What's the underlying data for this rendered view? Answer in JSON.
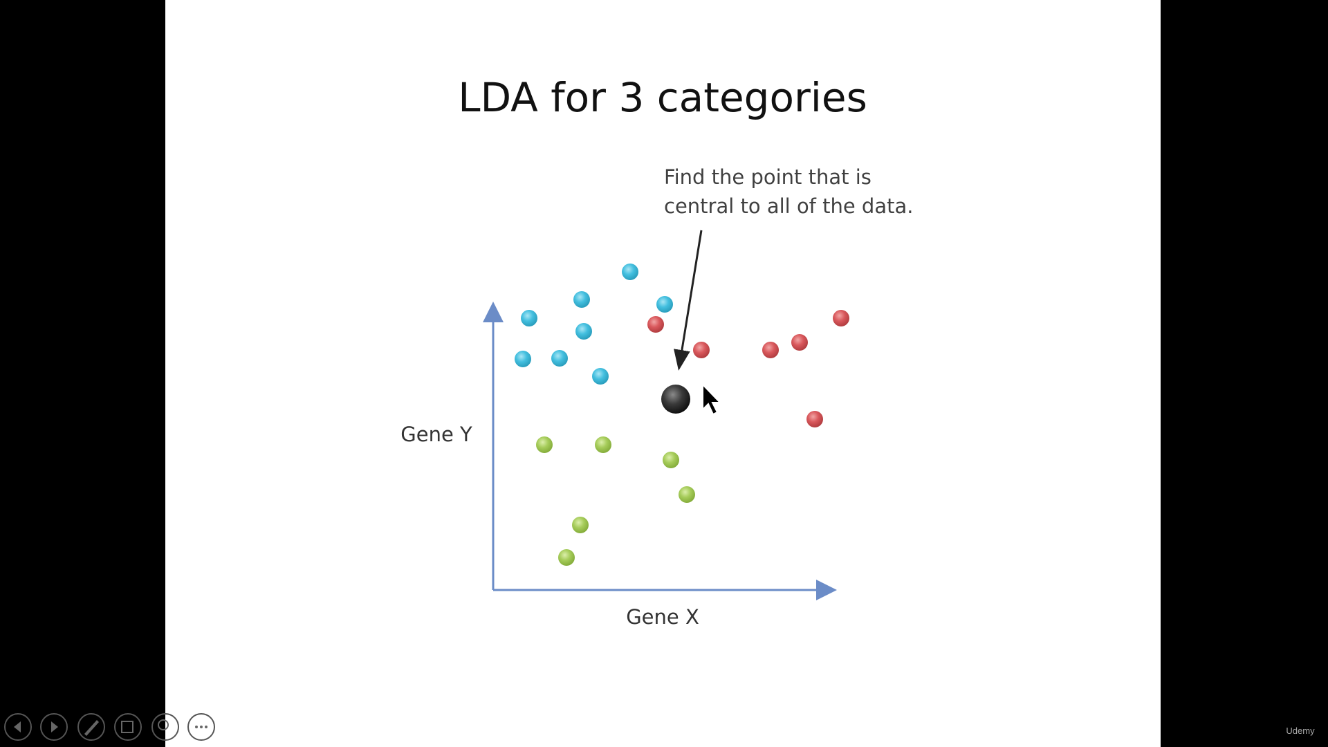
{
  "slide": {
    "title": "LDA for 3 categories",
    "annotation": [
      "Find the point that is",
      "central to all of the data."
    ],
    "y_axis_label": "Gene Y",
    "x_axis_label": "Gene X"
  },
  "footer": {
    "brand": "Udemy"
  }
}
